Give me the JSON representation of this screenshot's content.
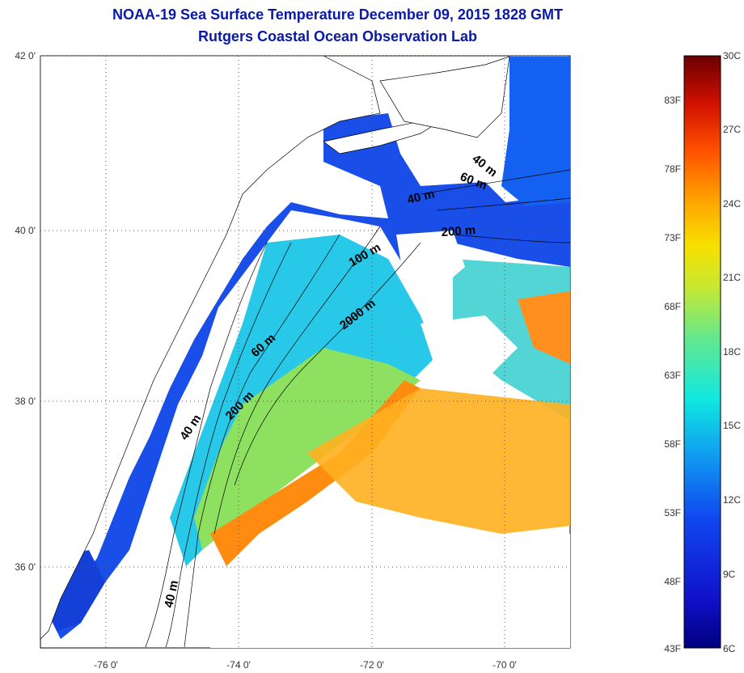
{
  "header": {
    "title": "NOAA-19 Sea Surface Temperature December 09, 2015 1828 GMT",
    "subtitle": "Rutgers Coastal Ocean Observation Lab"
  },
  "map": {
    "lat_labels": [
      "42 0'",
      "40 0'",
      "38 0'",
      "36 0'"
    ],
    "lon_labels": [
      "-76 0'",
      "-74 0'",
      "-72 0'",
      "-70 0'"
    ],
    "contour_labels": [
      "40 m",
      "60 m",
      "40 m",
      "200 m",
      "100 m",
      "2000 m",
      "60 m",
      "200 m",
      "40 m",
      "40 m"
    ]
  },
  "colorbar": {
    "celsius_labels": [
      "30C",
      "27C",
      "24C",
      "21C",
      "18C",
      "15C",
      "12C",
      "9C",
      "6C"
    ],
    "fahrenheit_labels": [
      "83F",
      "78F",
      "73F",
      "68F",
      "63F",
      "58F",
      "53F",
      "48F",
      "43F"
    ],
    "colors": [
      "#6b0000",
      "#b00000",
      "#e02000",
      "#ff6000",
      "#ffa000",
      "#f0e000",
      "#b8e840",
      "#50e890",
      "#10e8e0",
      "#10b0f0",
      "#1070f0",
      "#1030e0",
      "#1010c0",
      "#000080"
    ]
  }
}
